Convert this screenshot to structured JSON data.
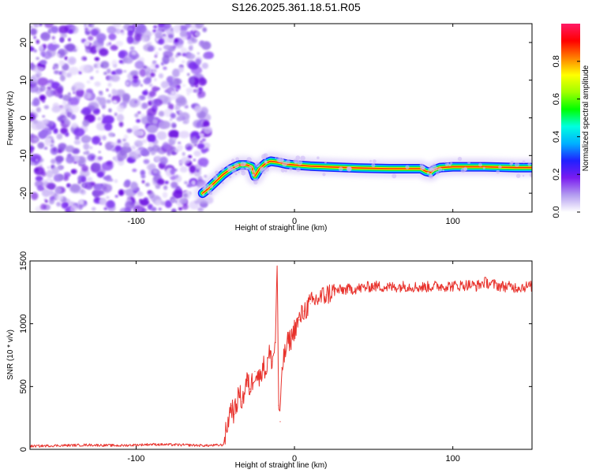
{
  "title": "S126.2025.361.18.51.R05",
  "chart_data": [
    {
      "type": "heatmap",
      "title": "S126.2025.361.18.51.R05",
      "xlabel": "Height of straight line (km)",
      "ylabel": "Frequency (Hz)",
      "xlim": [
        -167,
        150
      ],
      "ylim": [
        -25,
        25
      ],
      "x_ticks": [
        -100,
        0,
        100
      ],
      "x_tick_labels": [
        "-100",
        "0",
        "100"
      ],
      "y_ticks": [
        20,
        10,
        0,
        -10,
        -20
      ],
      "y_tick_labels": [
        "20",
        "10",
        "0",
        "-10",
        "-20"
      ],
      "noise_region_x": [
        -167,
        -54
      ],
      "ridge": {
        "x": [
          -58,
          -55,
          -50,
          -45,
          -40,
          -35,
          -30,
          -27,
          -25,
          -22,
          -18,
          -15,
          -10,
          -5,
          0,
          10,
          20,
          40,
          60,
          80,
          83,
          86,
          88,
          92,
          100,
          120,
          140,
          150
        ],
        "y": [
          -20,
          -19,
          -17,
          -15,
          -13.5,
          -12.5,
          -12.5,
          -13,
          -15.5,
          -13.5,
          -12,
          -11.5,
          -11.8,
          -12.3,
          -12.5,
          -12.8,
          -13,
          -13.3,
          -13.5,
          -13.5,
          -14.2,
          -14.5,
          -13.8,
          -13.2,
          -13,
          -13,
          -13.2,
          -13.2
        ]
      },
      "colorbar": {
        "label": "Normalized spectral amplitude",
        "range": [
          0,
          1
        ],
        "ticks": [
          0.0,
          0.2,
          0.4,
          0.6,
          0.8
        ],
        "tick_labels": [
          "0.0",
          "0.2",
          "0.4",
          "0.6",
          "0.8"
        ],
        "colors": [
          "#ffffff",
          "#b39cf0",
          "#7a1cf0",
          "#2020ff",
          "#00b0ff",
          "#00ffe0",
          "#00ff00",
          "#a0ff00",
          "#ffff00",
          "#ff8000",
          "#ff0000",
          "#ff1a66"
        ]
      }
    },
    {
      "type": "line",
      "xlabel": "Height of straight line (km)",
      "ylabel": "SNR (10 * v/v)",
      "xlim": [
        -167,
        150
      ],
      "ylim": [
        0,
        1500
      ],
      "x_ticks": [
        -100,
        0,
        100
      ],
      "x_tick_labels": [
        "-100",
        "0",
        "100"
      ],
      "y_ticks": [
        0,
        500,
        1000,
        1500
      ],
      "y_tick_labels": [
        "0",
        "500",
        "1000",
        "1500"
      ],
      "series": [
        {
          "name": "SNR",
          "color": "#e8322c",
          "x": [
            -167,
            -150,
            -130,
            -110,
            -90,
            -70,
            -55,
            -45,
            -43,
            -40,
            -38,
            -35,
            -33,
            -30,
            -28,
            -25,
            -22,
            -20,
            -18,
            -16,
            -14,
            -12,
            -11,
            -10,
            -9,
            -8,
            -6,
            -4,
            -2,
            0,
            3,
            6,
            10,
            15,
            20,
            25,
            30,
            40,
            50,
            60,
            70,
            80,
            90,
            100,
            110,
            115,
            120,
            130,
            140,
            150
          ],
          "values": [
            25,
            30,
            35,
            30,
            40,
            35,
            30,
            35,
            150,
            350,
            280,
            450,
            380,
            550,
            480,
            620,
            560,
            680,
            620,
            760,
            700,
            850,
            1500,
            350,
            220,
            650,
            760,
            860,
            880,
            960,
            1030,
            1100,
            1160,
            1200,
            1230,
            1260,
            1270,
            1280,
            1300,
            1290,
            1300,
            1290,
            1300,
            1300,
            1310,
            1300,
            1330,
            1300,
            1290,
            1300
          ]
        }
      ]
    }
  ]
}
